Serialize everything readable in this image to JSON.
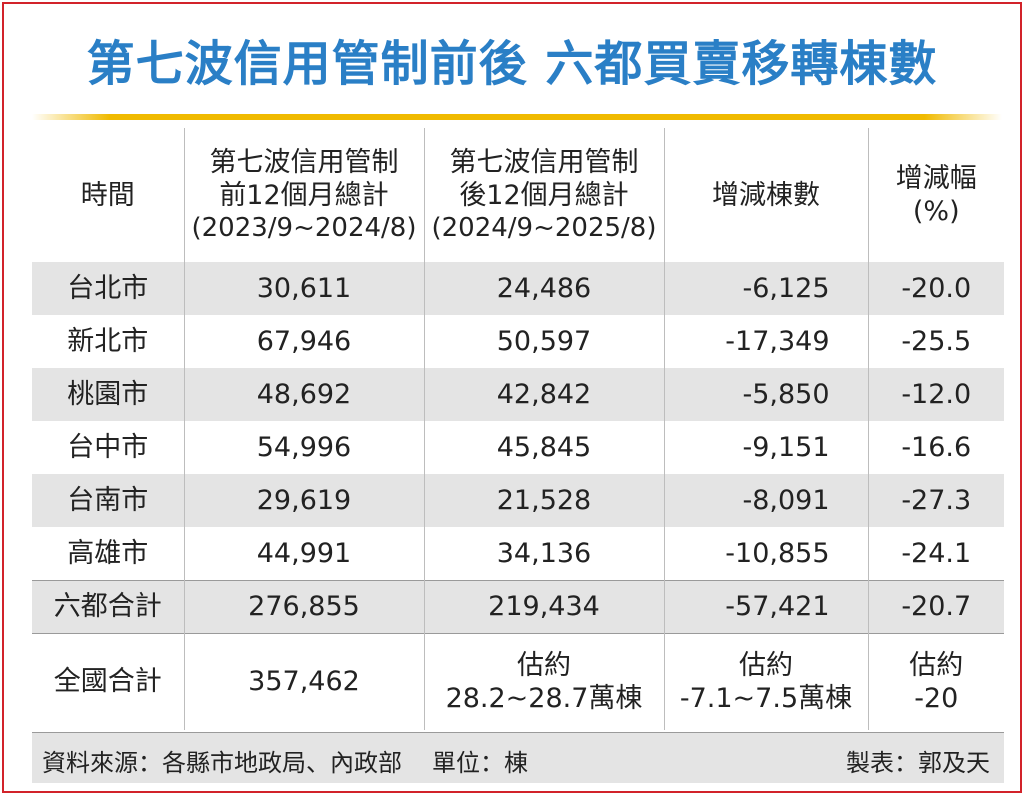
{
  "title": "第七波信用管制前後 六都買賣移轉棟數",
  "headers": {
    "time": "時間",
    "before_l1": "第七波信用管制",
    "before_l2": "前12個月總計",
    "before_l3": "(2023/9~2024/8)",
    "after_l1": "第七波信用管制",
    "after_l2": "後12個月總計",
    "after_l3": "(2024/9~2025/8)",
    "change": "增減棟數",
    "pct_l1": "增減幅",
    "pct_l2": "(%)"
  },
  "rows": [
    {
      "city": "台北市",
      "before": "30,611",
      "after": "24,486",
      "change": "-6,125",
      "pct": "-20.0"
    },
    {
      "city": "新北市",
      "before": "67,946",
      "after": "50,597",
      "change": "-17,349",
      "pct": "-25.5"
    },
    {
      "city": "桃園市",
      "before": "48,692",
      "after": "42,842",
      "change": "-5,850",
      "pct": "-12.0"
    },
    {
      "city": "台中市",
      "before": "54,996",
      "after": "45,845",
      "change": "-9,151",
      "pct": "-16.6"
    },
    {
      "city": "台南市",
      "before": "29,619",
      "after": "21,528",
      "change": "-8,091",
      "pct": "-27.3"
    },
    {
      "city": "高雄市",
      "before": "44,991",
      "after": "34,136",
      "change": "-10,855",
      "pct": "-24.1"
    }
  ],
  "six_total": {
    "label": "六都合計",
    "before": "276,855",
    "after": "219,434",
    "change": "-57,421",
    "pct": "-20.7"
  },
  "national": {
    "label": "全國合計",
    "before": "357,462",
    "after_l1": "估約",
    "after_l2": "28.2~28.7萬棟",
    "change_l1": "估約",
    "change_l2": "-7.1~7.5萬棟",
    "pct_l1": "估約",
    "pct_l2": "-20"
  },
  "footer": {
    "source": "資料來源：各縣市地政局、內政部",
    "unit": "單位：棟",
    "maker": "製表：郭及天"
  },
  "colors": {
    "title": "#2a7fc6",
    "rule": "#f0ba00",
    "border": "#d2232a",
    "stripe": "#e4e4e4"
  }
}
